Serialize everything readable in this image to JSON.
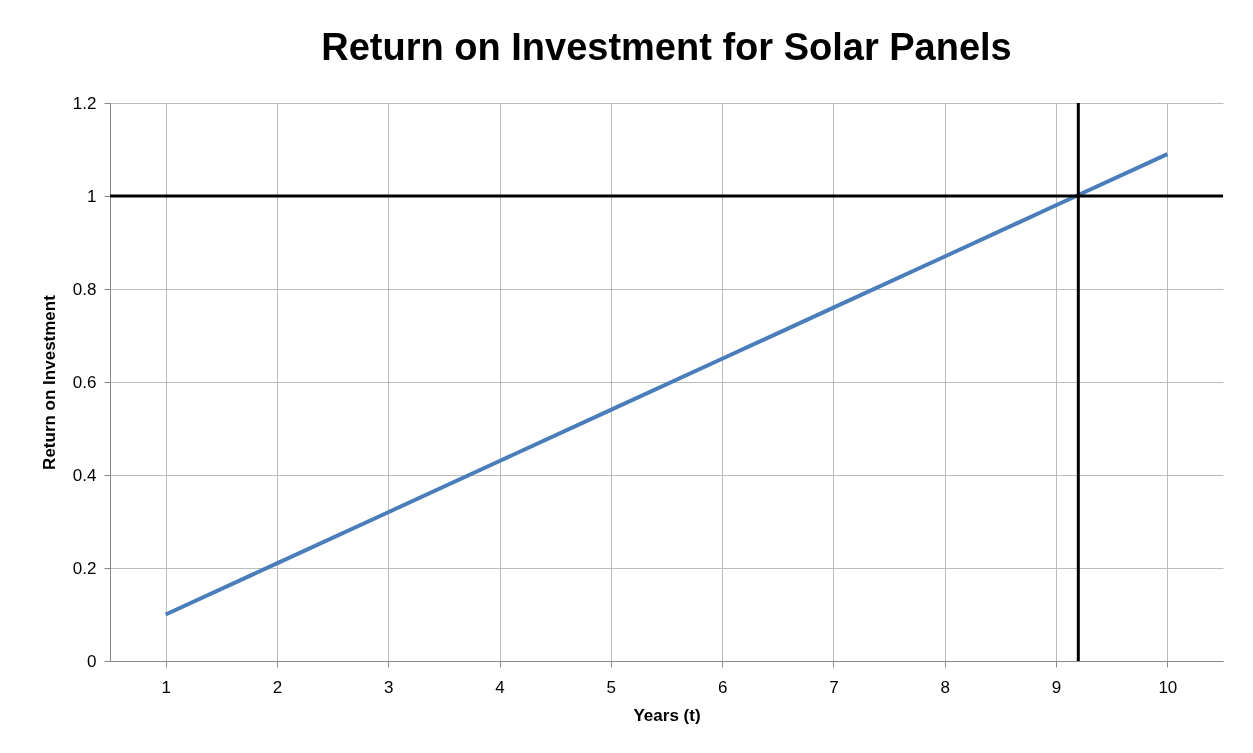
{
  "chart_data": {
    "type": "line",
    "title": "Return on Investment for Solar Panels",
    "xlabel": "Years (t)",
    "ylabel": "Return on Investment",
    "x": [
      1,
      2,
      3,
      4,
      5,
      6,
      7,
      8,
      9,
      10
    ],
    "series": [
      {
        "color": "#4a7ebb",
        "values": [
          0.1,
          0.21,
          0.32,
          0.43,
          0.54,
          0.65,
          0.76,
          0.87,
          0.98,
          1.09
        ]
      }
    ],
    "xlim": [
      0.5,
      10.5
    ],
    "xticks": [
      1,
      2,
      3,
      4,
      5,
      6,
      7,
      8,
      9,
      10
    ],
    "ylim": [
      0,
      1.2
    ],
    "yticks": [
      0,
      0.2,
      0.4,
      0.6,
      0.8,
      1,
      1.2
    ],
    "ref_lines": [
      {
        "axis": "y",
        "value": 1,
        "color": "#000000"
      },
      {
        "axis": "x",
        "value": 9.2,
        "color": "#000000"
      }
    ],
    "grid": true,
    "marker": "none",
    "line_style": "solid"
  }
}
